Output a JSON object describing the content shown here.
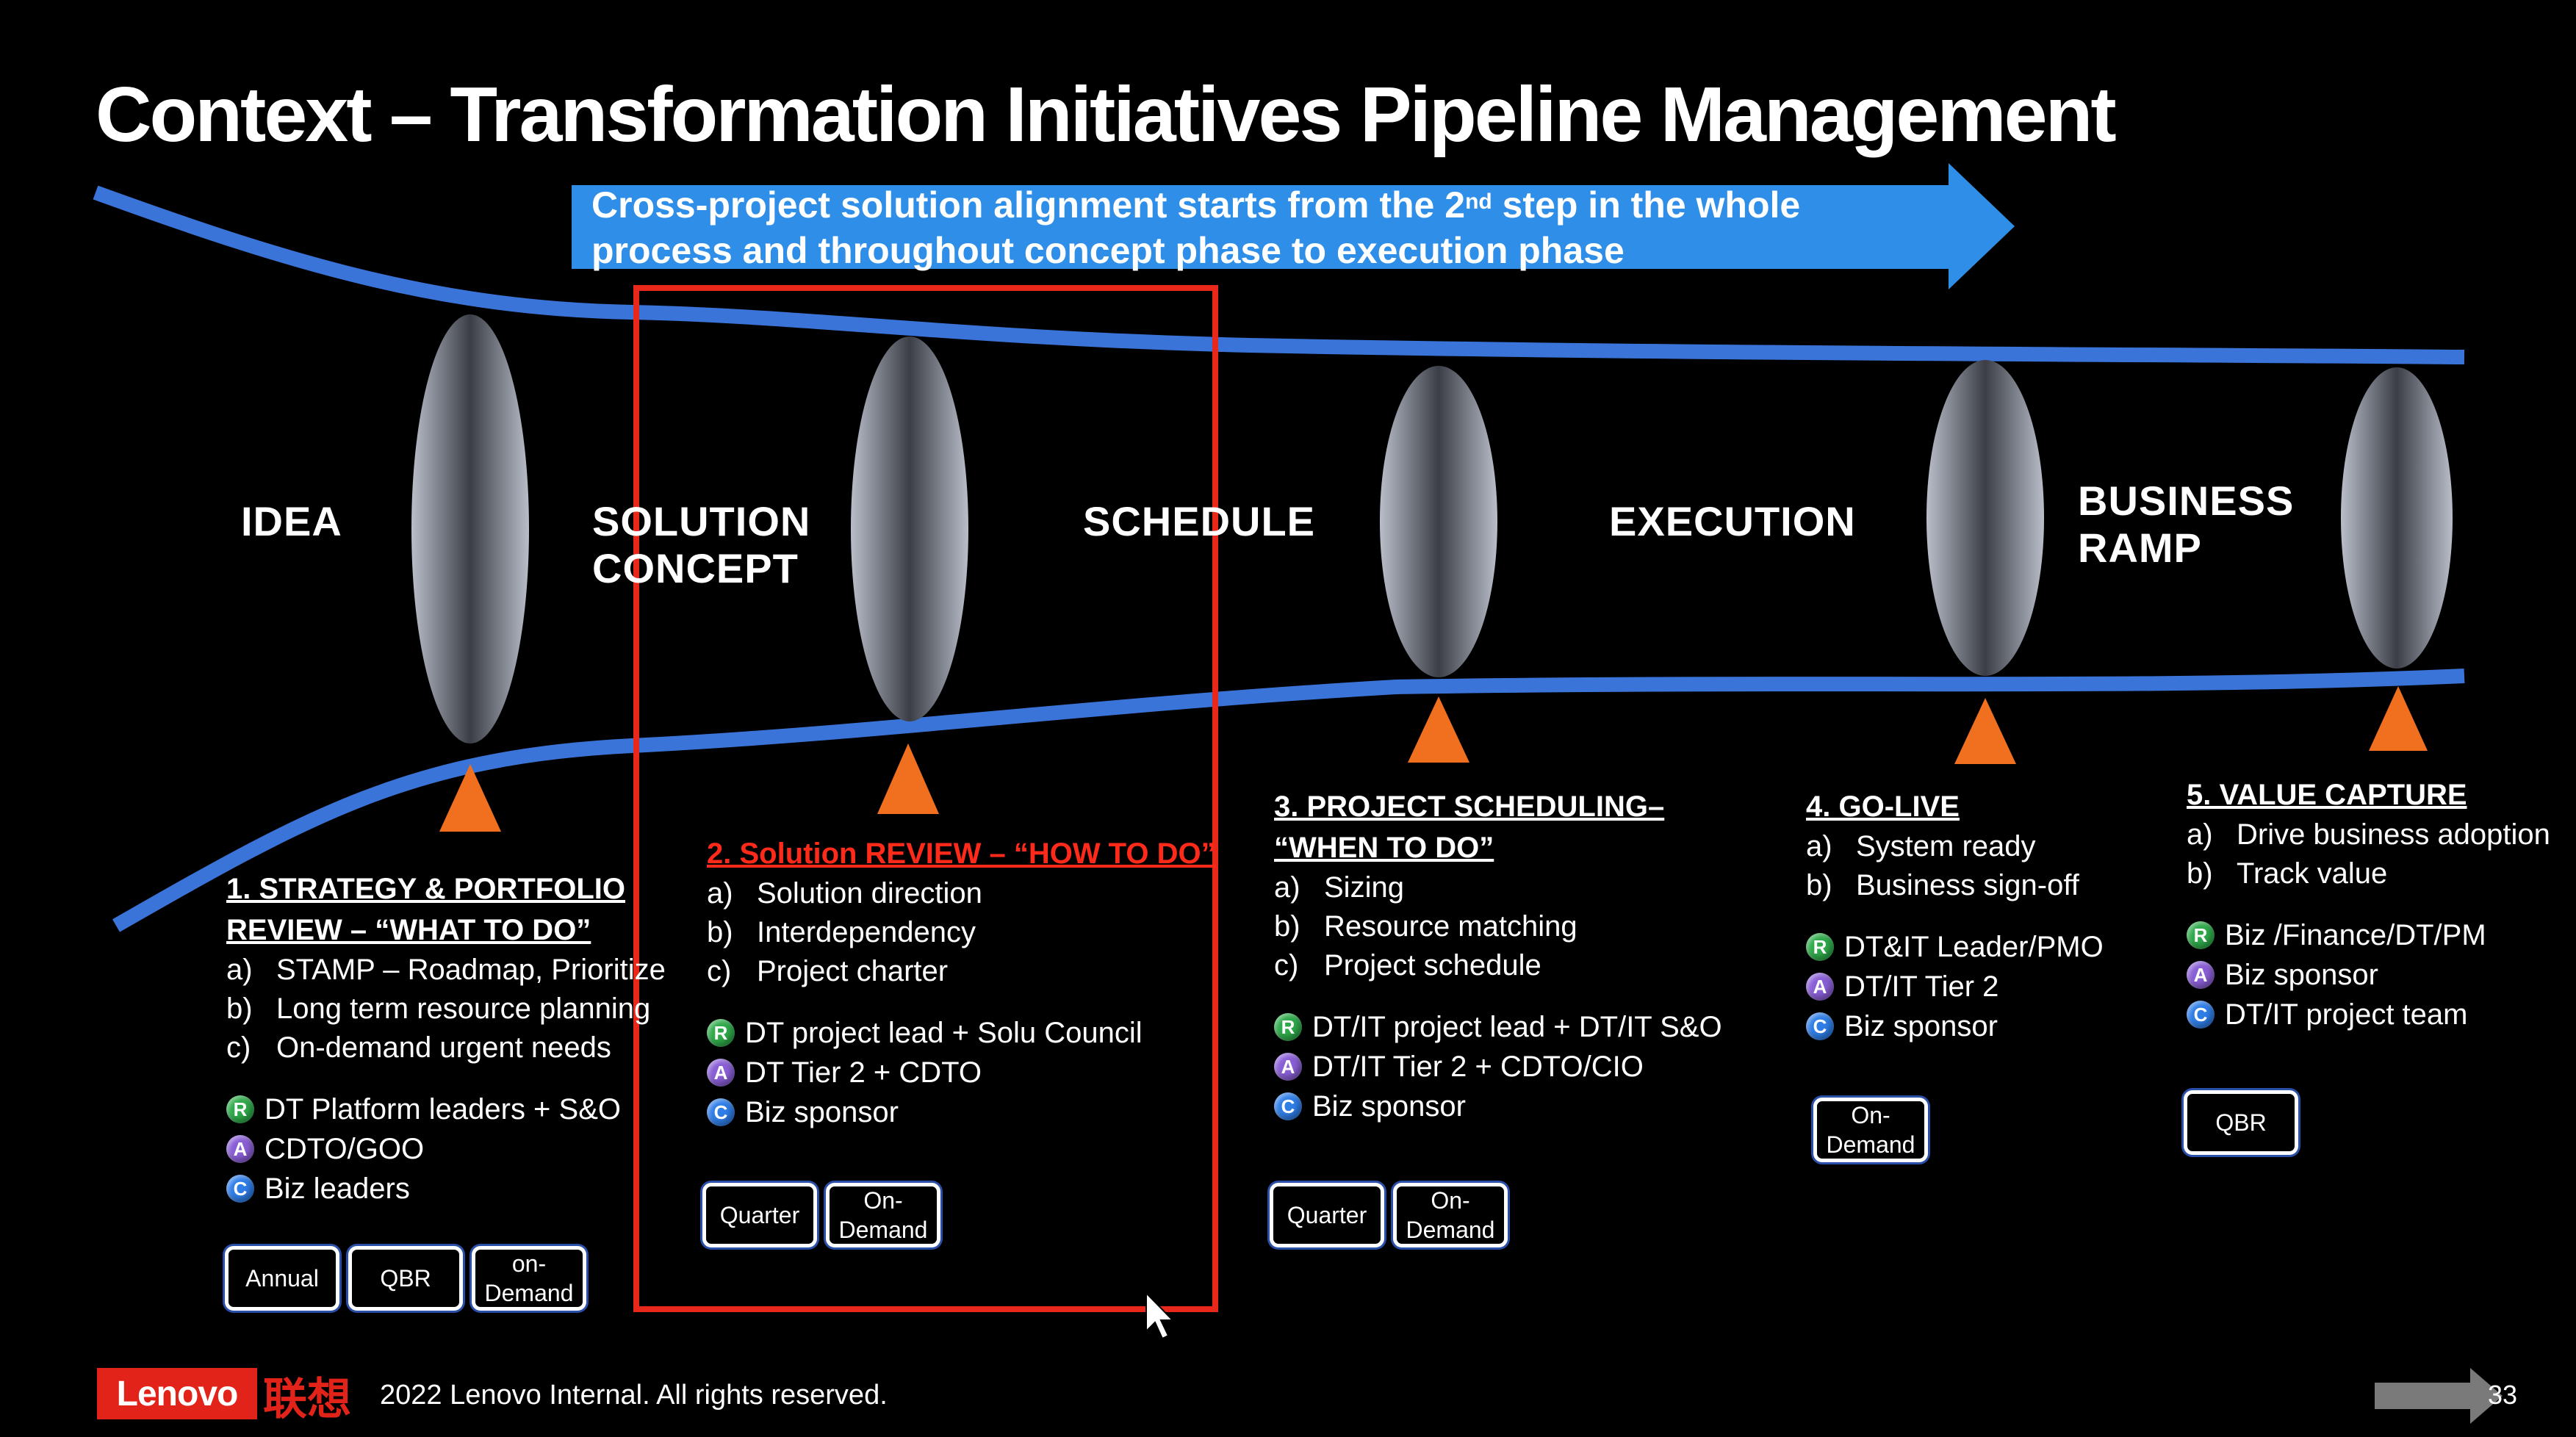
{
  "slide": {
    "title": "Context – Transformation Initiatives Pipeline Management",
    "banner": {
      "line1_before": "Cross-project solution alignment starts from the 2",
      "line1_sup": "nd",
      "line1_after": " step in the whole",
      "line2": "process and throughout concept phase to execution phase"
    },
    "colors": {
      "pipeline_blue": "#3a74d8",
      "arrow_blue": "#2f8fe8",
      "gate_triangle": "#f07020",
      "highlight_red": "#e8281a",
      "brand_red": "#e2231a"
    },
    "phases": {
      "idea": "IDEA",
      "solution_line1": "SOLUTION",
      "solution_line2": "CONCEPT",
      "schedule": "SCHEDULE",
      "execution": "EXECUTION",
      "business_line1": "BUSINESS",
      "business_line2": "RAMP"
    },
    "stages": [
      {
        "title_line1": "1. STRATEGY & PORTFOLIO",
        "title_line2": "REVIEW – “WHAT TO DO”",
        "items": [
          {
            "label": "a)",
            "text": "STAMP – Roadmap, Prioritize"
          },
          {
            "label": "b)",
            "text": "Long term resource planning"
          },
          {
            "label": "c)",
            "text": "On-demand urgent needs"
          }
        ],
        "raci": [
          {
            "badge": "R",
            "text": "DT Platform leaders + S&O"
          },
          {
            "badge": "A",
            "text": "CDTO/GOO"
          },
          {
            "badge": "C",
            "text": "Biz leaders"
          }
        ],
        "buttons": [
          "Annual",
          "QBR",
          "on-\nDemand"
        ]
      },
      {
        "title_line1": "2. Solution REVIEW – “HOW TO DO”",
        "items": [
          {
            "label": "a)",
            "text": "Solution direction"
          },
          {
            "label": "b)",
            "text": "Interdependency"
          },
          {
            "label": "c)",
            "text": "Project charter"
          }
        ],
        "raci": [
          {
            "badge": "R",
            "text": "DT project lead + Solu Council"
          },
          {
            "badge": "A",
            "text": "DT Tier 2 + CDTO"
          },
          {
            "badge": "C",
            "text": "Biz sponsor"
          }
        ],
        "buttons": [
          "Quarter",
          "On-\nDemand"
        ]
      },
      {
        "title_line1": "3. PROJECT SCHEDULING–",
        "title_line2": "“WHEN TO DO”",
        "items": [
          {
            "label": "a)",
            "text": "Sizing"
          },
          {
            "label": "b)",
            "text": "Resource matching"
          },
          {
            "label": "c)",
            "text": "Project schedule"
          }
        ],
        "raci": [
          {
            "badge": "R",
            "text": "DT/IT project lead + DT/IT S&O"
          },
          {
            "badge": "A",
            "text": "DT/IT Tier 2 + CDTO/CIO"
          },
          {
            "badge": "C",
            "text": "Biz sponsor"
          }
        ],
        "buttons": [
          "Quarter",
          "On-\nDemand"
        ]
      },
      {
        "title_line1": "4. GO-LIVE",
        "items": [
          {
            "label": "a)",
            "text": "System ready"
          },
          {
            "label": "b)",
            "text": "Business sign-off"
          }
        ],
        "raci": [
          {
            "badge": "R",
            "text": "DT&IT Leader/PMO"
          },
          {
            "badge": "A",
            "text": "DT/IT Tier 2"
          },
          {
            "badge": "C",
            "text": "Biz sponsor"
          }
        ],
        "buttons": [
          "On-\nDemand"
        ]
      },
      {
        "title_line1": "5. VALUE CAPTURE",
        "items": [
          {
            "label": "a)",
            "text": "Drive business adoption"
          },
          {
            "label": "b)",
            "text": "Track value"
          }
        ],
        "raci": [
          {
            "badge": "R",
            "text": "Biz /Finance/DT/PM"
          },
          {
            "badge": "A",
            "text": "Biz sponsor"
          },
          {
            "badge": "C",
            "text": "DT/IT project team"
          }
        ],
        "buttons": [
          "QBR"
        ]
      }
    ],
    "footer": {
      "logo": "Lenovo",
      "logo_cn": "联想",
      "copyright": "2022 Lenovo Internal. All rights reserved.",
      "page_number": "33"
    }
  }
}
